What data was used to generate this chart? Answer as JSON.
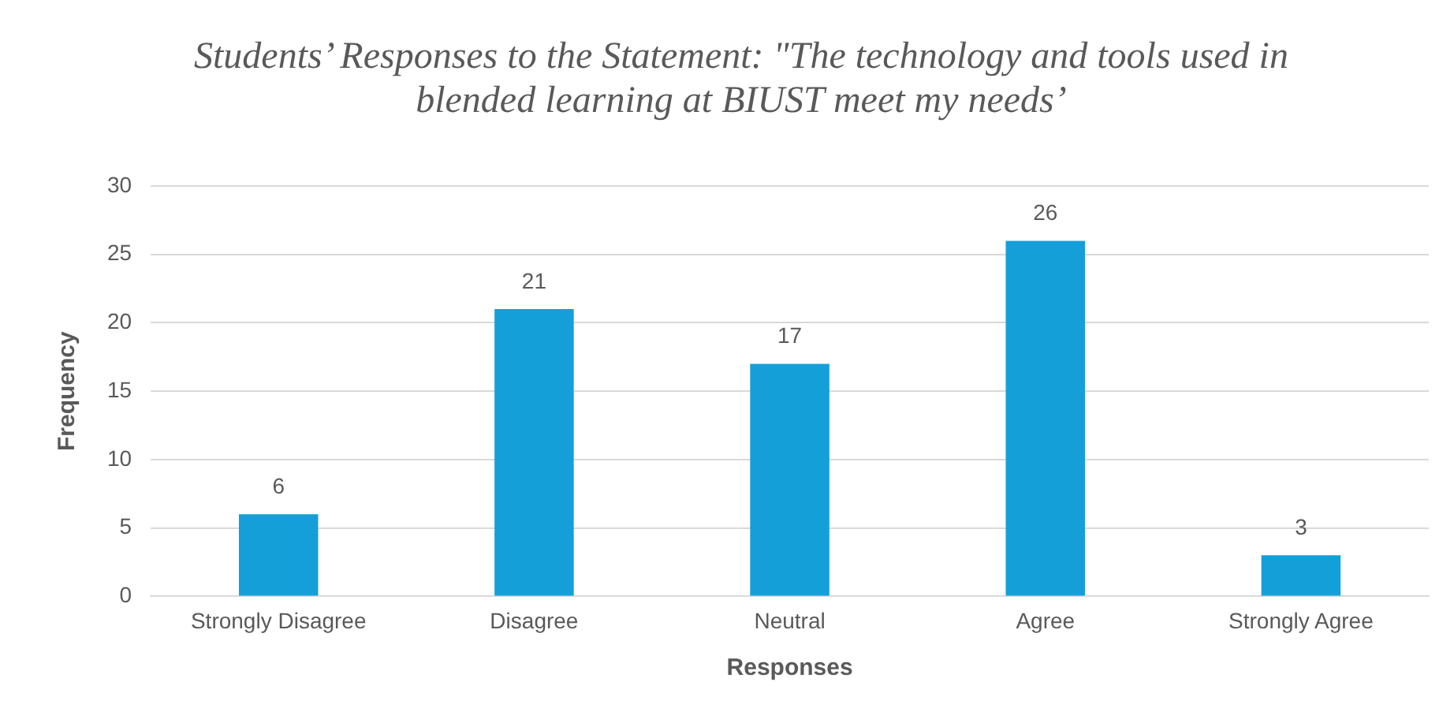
{
  "chart_data": {
    "type": "bar",
    "title": "Students’ Responses to the Statement: \"The technology and tools used in blended learning at BIUST meet my needs’",
    "xlabel": "Responses",
    "ylabel": "Frequency",
    "categories": [
      "Strongly Disagree",
      "Disagree",
      "Neutral",
      "Agree",
      "Strongly Agree"
    ],
    "values": [
      6,
      21,
      17,
      26,
      3
    ],
    "color": "#159fd9",
    "ylim": [
      0,
      30
    ],
    "yticks": [
      0,
      5,
      10,
      15,
      20,
      25,
      30
    ],
    "grid": "y",
    "data_labels": true,
    "legend": false
  }
}
